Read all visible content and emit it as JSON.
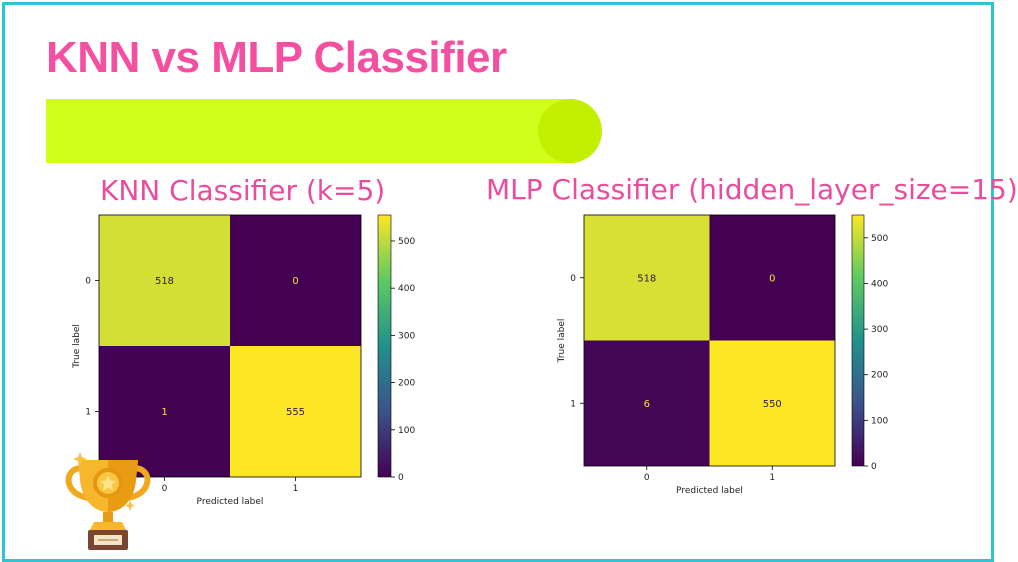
{
  "slide": {
    "title": "KNN vs MLP Classifier",
    "border_color": "#2ec5d3",
    "title_color": "#f44fa0",
    "accent_bar_color": "#d0ff1c",
    "trophy_icon": "trophy-icon"
  },
  "chart_data": [
    {
      "type": "heatmap",
      "title": "KNN Classifier (k=5)",
      "xlabel": "Predicted label",
      "ylabel": "True label",
      "x_categories": [
        "0",
        "1"
      ],
      "y_categories": [
        "0",
        "1"
      ],
      "values": [
        [
          518,
          0
        ],
        [
          1,
          555
        ]
      ],
      "cell_text": [
        [
          "518",
          "0"
        ],
        [
          "1",
          "555"
        ]
      ],
      "colorbar": {
        "min": 0,
        "max": 555,
        "ticks": [
          0,
          100,
          200,
          300,
          400,
          500
        ],
        "tick_labels": [
          "0",
          "100",
          "200",
          "300",
          "400",
          "500"
        ]
      },
      "colormap": "viridis"
    },
    {
      "type": "heatmap",
      "title": "MLP Classifier (hidden_layer_size=15)",
      "xlabel": "Predicted label",
      "ylabel": "True label",
      "x_categories": [
        "0",
        "1"
      ],
      "y_categories": [
        "0",
        "1"
      ],
      "values": [
        [
          518,
          0
        ],
        [
          6,
          550
        ]
      ],
      "cell_text": [
        [
          "518",
          "0"
        ],
        [
          "6",
          "550"
        ]
      ],
      "colorbar": {
        "min": 0,
        "max": 550,
        "ticks": [
          0,
          100,
          200,
          300,
          400,
          500
        ],
        "tick_labels": [
          "0",
          "100",
          "200",
          "300",
          "400",
          "500"
        ]
      },
      "colormap": "viridis"
    }
  ]
}
